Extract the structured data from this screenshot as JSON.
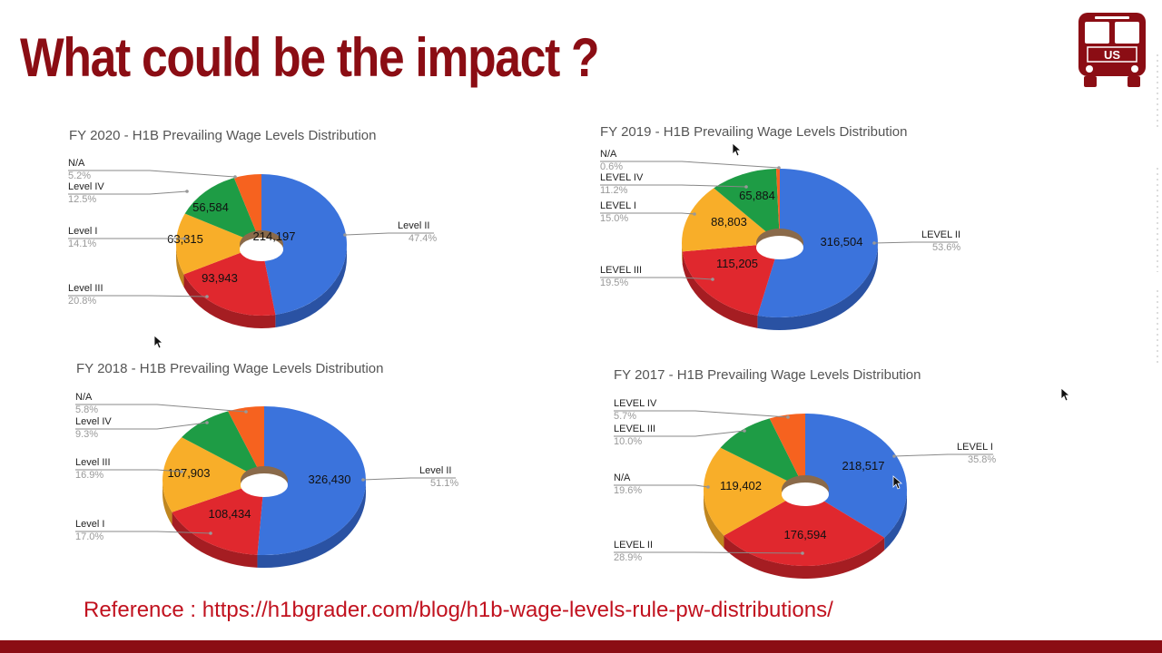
{
  "slide": {
    "title": "What could be the impact ?",
    "reference_label": "Reference : ",
    "reference_url": "https://h1bgrader.com/blog/h1b-wage-levels-rule-pw-distributions/",
    "logo_text": "US"
  },
  "colors": {
    "blue": "#3b73dc",
    "red": "#e0282e",
    "yellow": "#f8ae29",
    "green": "#1e9c45",
    "orange": "#f6621f",
    "brand": "#8b0d14"
  },
  "chart_data": [
    {
      "type": "pie",
      "title": "FY 2020 - H1B Prevailing Wage Levels Distribution",
      "slices": [
        {
          "label": "Level II",
          "value": 214197,
          "value_text": "214,197",
          "percent": "47.4%",
          "color": "blue"
        },
        {
          "label": "Level III",
          "value": 93943,
          "value_text": "93,943",
          "percent": "20.8%",
          "color": "red"
        },
        {
          "label": "Level I",
          "value": 63815,
          "value_text": "63,815",
          "percent": "14.1%",
          "color": "yellow"
        },
        {
          "label": "Level IV",
          "value": 56584,
          "value_text": "56,584",
          "percent": "12.5%",
          "color": "green"
        },
        {
          "label": "N/A",
          "value": 23500,
          "value_text": "",
          "percent": "5.2%",
          "color": "orange"
        }
      ]
    },
    {
      "type": "pie",
      "title": "FY 2019 - H1B Prevailing Wage Levels Distribution",
      "slices": [
        {
          "label": "LEVEL II",
          "value": 316504,
          "value_text": "316,504",
          "percent": "53.6%",
          "color": "blue"
        },
        {
          "label": "LEVEL III",
          "value": 115205,
          "value_text": "115,205",
          "percent": "19.5%",
          "color": "red"
        },
        {
          "label": "LEVEL I",
          "value": 88803,
          "value_text": "88,803",
          "percent": "15.0%",
          "color": "yellow"
        },
        {
          "label": "LEVEL IV",
          "value": 65884,
          "value_text": "65,884",
          "percent": "11.2%",
          "color": "green"
        },
        {
          "label": "N/A",
          "value": 3500,
          "value_text": "",
          "percent": "0.6%",
          "color": "orange"
        }
      ]
    },
    {
      "type": "pie",
      "title": "FY 2018 - H1B Prevailing Wage Levels Distribution",
      "slices": [
        {
          "label": "Level II",
          "value": 326430,
          "value_text": "326,430",
          "percent": "51.1%",
          "color": "blue"
        },
        {
          "label": "Level I",
          "value": 108434,
          "value_text": "108,434",
          "percent": "17.0%",
          "color": "red"
        },
        {
          "label": "Level III",
          "value": 107903,
          "value_text": "107,903",
          "percent": "16.9%",
          "color": "yellow"
        },
        {
          "label": "Level IV",
          "value": 59400,
          "value_text": "",
          "percent": "9.3%",
          "color": "green"
        },
        {
          "label": "N/A",
          "value": 37000,
          "value_text": "",
          "percent": "5.8%",
          "color": "orange"
        }
      ]
    },
    {
      "type": "pie",
      "title": "FY 2017 - H1B Prevailing Wage Levels Distribution",
      "slices": [
        {
          "label": "LEVEL I",
          "value": 218517,
          "value_text": "218,517",
          "percent": "35.8%",
          "color": "blue"
        },
        {
          "label": "LEVEL II",
          "value": 176594,
          "value_text": "176,594",
          "percent": "28.9%",
          "color": "red"
        },
        {
          "label": "N/A",
          "value": 119402,
          "value_text": "119,402",
          "percent": "19.6%",
          "color": "yellow"
        },
        {
          "label": "LEVEL III",
          "value": 61000,
          "value_text": "",
          "percent": "10.0%",
          "color": "green"
        },
        {
          "label": "LEVEL IV",
          "value": 34800,
          "value_text": "",
          "percent": "5.7%",
          "color": "orange"
        }
      ]
    }
  ]
}
